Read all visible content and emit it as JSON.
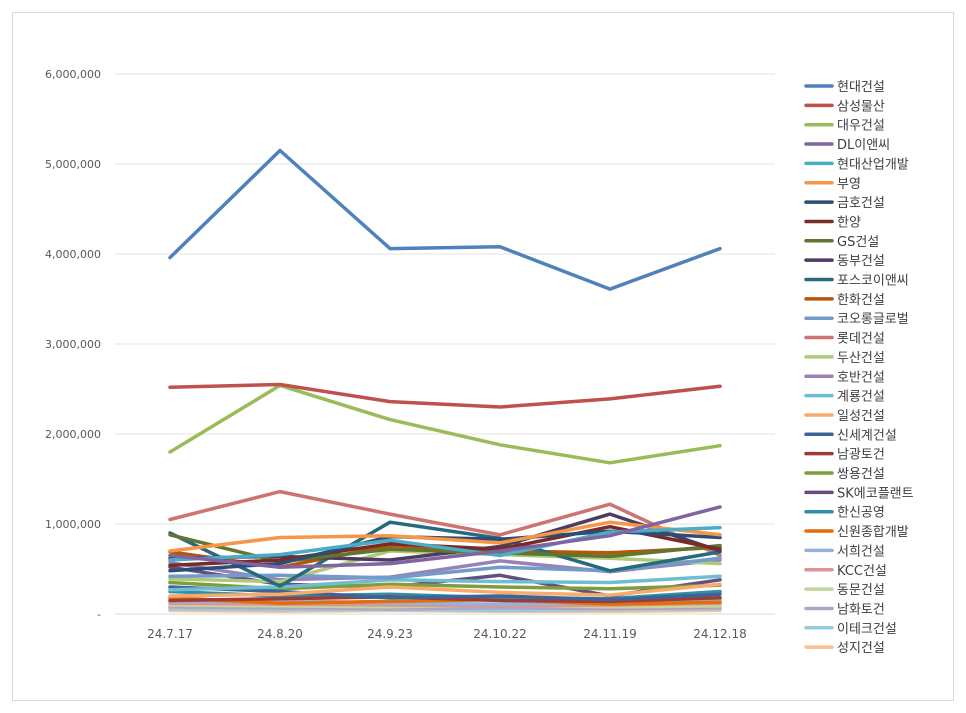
{
  "chart_data": {
    "type": "line",
    "title": "",
    "xlabel": "",
    "ylabel": "",
    "ylim": [
      0,
      6000000
    ],
    "yticks": [
      0,
      1000000,
      2000000,
      3000000,
      4000000,
      5000000,
      6000000
    ],
    "ytick_labels": [
      "-",
      "1,000,000",
      "2,000,000",
      "3,000,000",
      "4,000,000",
      "5,000,000",
      "6,000,000"
    ],
    "grid": true,
    "legend_position": "right",
    "categories": [
      "24.7.17",
      "24.8.20",
      "24.9.23",
      "24.10.22",
      "24.11.19",
      "24.12.18"
    ],
    "series": [
      {
        "name": "현대건설",
        "color": "#4f81bd",
        "values": [
          3960000,
          5150000,
          4060000,
          4080000,
          3610000,
          4060000
        ]
      },
      {
        "name": "삼성물산",
        "color": "#c0504d",
        "values": [
          2520000,
          2550000,
          2360000,
          2300000,
          2390000,
          2530000
        ]
      },
      {
        "name": "대우건설",
        "color": "#9bbb59",
        "values": [
          1800000,
          2540000,
          2160000,
          1880000,
          1680000,
          1870000
        ]
      },
      {
        "name": "DL이앤씨",
        "color": "#8064a2",
        "values": [
          650000,
          520000,
          560000,
          700000,
          870000,
          1190000
        ]
      },
      {
        "name": "현대산업개발",
        "color": "#4bacc6",
        "values": [
          600000,
          660000,
          820000,
          650000,
          910000,
          960000
        ]
      },
      {
        "name": "부영",
        "color": "#f79646",
        "values": [
          700000,
          850000,
          870000,
          790000,
          1020000,
          880000
        ]
      },
      {
        "name": "금호건설",
        "color": "#2c4d75",
        "values": [
          480000,
          560000,
          860000,
          830000,
          920000,
          850000
        ]
      },
      {
        "name": "한양",
        "color": "#772c2a",
        "values": [
          540000,
          600000,
          780000,
          720000,
          970000,
          720000
        ]
      },
      {
        "name": "GS건설",
        "color": "#5f7530",
        "values": [
          880000,
          580000,
          720000,
          680000,
          640000,
          760000
        ]
      },
      {
        "name": "동부건설",
        "color": "#4d3b62",
        "values": [
          620000,
          640000,
          600000,
          750000,
          1110000,
          700000
        ]
      },
      {
        "name": "포스코이앤씨",
        "color": "#276a7c",
        "values": [
          900000,
          310000,
          1020000,
          840000,
          480000,
          690000
        ]
      },
      {
        "name": "한화건설",
        "color": "#b65708",
        "values": [
          690000,
          520000,
          760000,
          700000,
          680000,
          740000
        ]
      },
      {
        "name": "코오롱글로벌",
        "color": "#729aca",
        "values": [
          420000,
          430000,
          400000,
          520000,
          480000,
          620000
        ]
      },
      {
        "name": "롯데건설",
        "color": "#cd7371",
        "values": [
          1050000,
          1360000,
          1110000,
          880000,
          1220000,
          650000
        ]
      },
      {
        "name": "두산건설",
        "color": "#afc97a",
        "values": [
          390000,
          360000,
          700000,
          660000,
          620000,
          560000
        ]
      },
      {
        "name": "호반건설",
        "color": "#9983b5",
        "values": [
          570000,
          380000,
          410000,
          590000,
          470000,
          600000
        ]
      },
      {
        "name": "계룡건설",
        "color": "#6fbdd1",
        "values": [
          270000,
          300000,
          380000,
          360000,
          350000,
          420000
        ]
      },
      {
        "name": "일성건설",
        "color": "#f9ab6b",
        "values": [
          200000,
          220000,
          300000,
          240000,
          210000,
          330000
        ]
      },
      {
        "name": "신세계건설",
        "color": "#3a6598",
        "values": [
          300000,
          250000,
          180000,
          200000,
          160000,
          220000
        ]
      },
      {
        "name": "남광토건",
        "color": "#9c3c3a",
        "values": [
          150000,
          170000,
          190000,
          150000,
          140000,
          180000
        ]
      },
      {
        "name": "쌍용건설",
        "color": "#7f9c3f",
        "values": [
          350000,
          280000,
          330000,
          300000,
          280000,
          320000
        ]
      },
      {
        "name": "SK에코플랜트",
        "color": "#654f80",
        "values": [
          520000,
          330000,
          300000,
          430000,
          200000,
          380000
        ]
      },
      {
        "name": "한신공영",
        "color": "#348ea5",
        "values": [
          250000,
          200000,
          220000,
          180000,
          170000,
          250000
        ]
      },
      {
        "name": "신원종합개발",
        "color": "#e46c0a",
        "values": [
          180000,
          120000,
          140000,
          160000,
          110000,
          130000
        ]
      },
      {
        "name": "서희건설",
        "color": "#95b3d7",
        "values": [
          140000,
          150000,
          120000,
          110000,
          130000,
          150000
        ]
      },
      {
        "name": "KCC건설",
        "color": "#d99694",
        "values": [
          120000,
          110000,
          100000,
          90000,
          100000,
          120000
        ]
      },
      {
        "name": "동문건설",
        "color": "#c3d69b",
        "values": [
          100000,
          90000,
          80000,
          100000,
          80000,
          90000
        ]
      },
      {
        "name": "남화토건",
        "color": "#b3a2c7",
        "values": [
          80000,
          70000,
          60000,
          70000,
          60000,
          70000
        ]
      },
      {
        "name": "이테크건설",
        "color": "#93cddd",
        "values": [
          60000,
          50000,
          50000,
          40000,
          50000,
          60000
        ]
      },
      {
        "name": "성지건설",
        "color": "#fac090",
        "values": [
          40000,
          30000,
          40000,
          30000,
          30000,
          40000
        ]
      }
    ]
  }
}
